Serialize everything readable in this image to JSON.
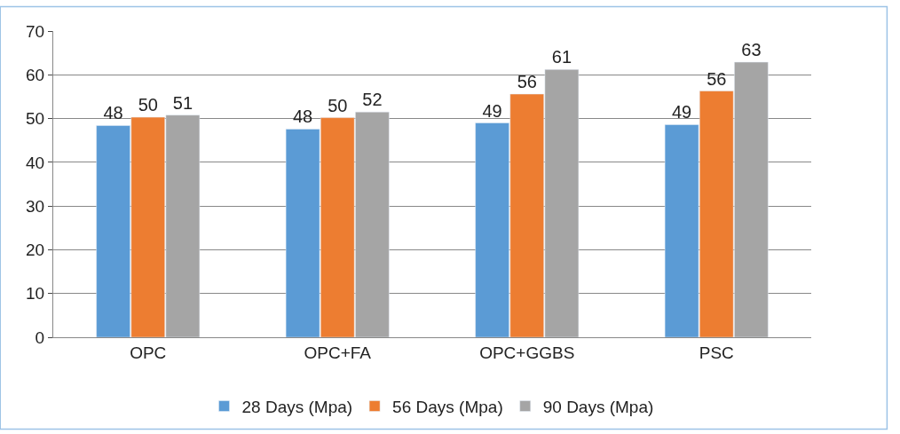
{
  "chart_data": {
    "type": "bar",
    "categories": [
      "OPC",
      "OPC+FA",
      "OPC+GGBS",
      "PSC"
    ],
    "series": [
      {
        "name": "28 Days (Mpa)",
        "color": "#5b9bd5",
        "values": [
          48.4,
          47.6,
          49.0,
          48.6
        ],
        "value_labels": [
          "48",
          "48",
          "49",
          "49"
        ]
      },
      {
        "name": "56 Days (Mpa)",
        "color": "#ed7d31",
        "values": [
          50.3,
          50.2,
          55.6,
          56.3
        ],
        "value_labels": [
          "50",
          "50",
          "56",
          "56"
        ]
      },
      {
        "name": "90 Days (Mpa)",
        "color": "#a5a5a5",
        "values": [
          50.8,
          51.5,
          61.2,
          62.9
        ],
        "value_labels": [
          "51",
          "52",
          "61",
          "63"
        ]
      }
    ],
    "ylim": [
      0,
      70
    ],
    "yticks": [
      0,
      10,
      20,
      30,
      40,
      50,
      60,
      70
    ],
    "grid": "y",
    "legend": "bottom"
  }
}
